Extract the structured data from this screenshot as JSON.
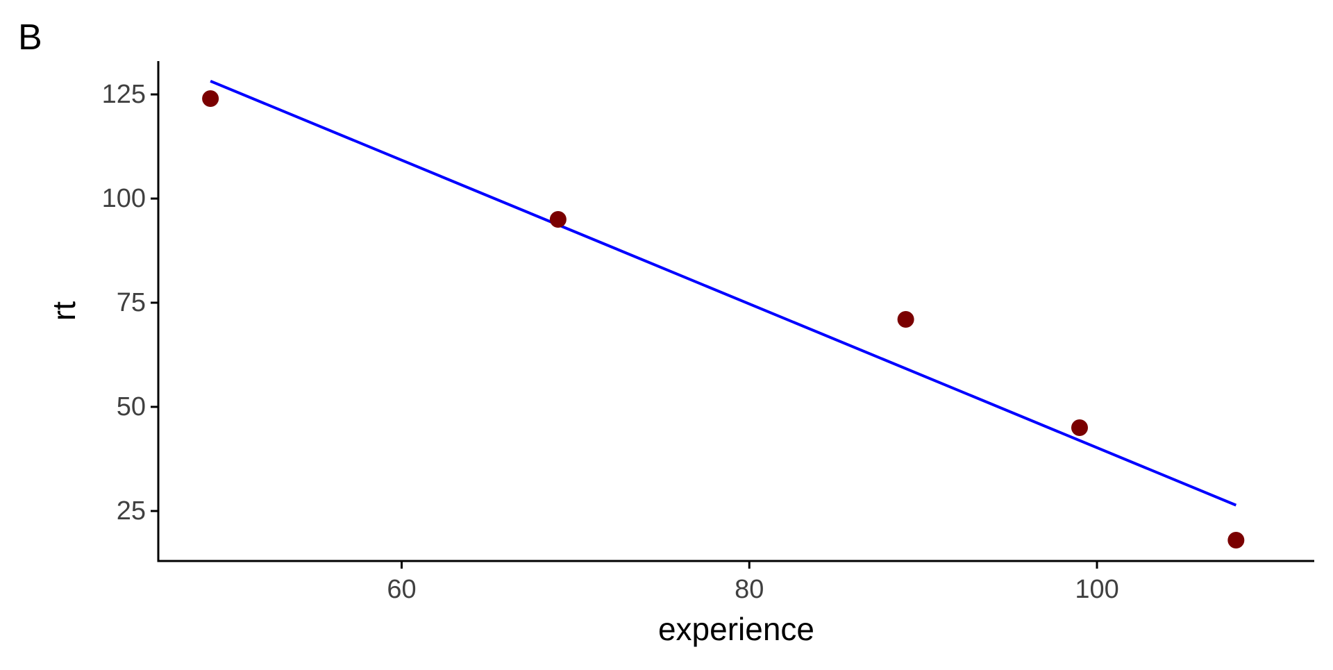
{
  "panel_label": "B",
  "chart_data": {
    "type": "scatter",
    "x_label": "experience",
    "y_label": "rt",
    "x_ticks": [
      60,
      80,
      100
    ],
    "y_ticks": [
      25,
      50,
      75,
      100,
      125
    ],
    "xlim": [
      46,
      112.5
    ],
    "ylim": [
      13,
      133
    ],
    "points": [
      {
        "x": 49,
        "y": 124
      },
      {
        "x": 69,
        "y": 95
      },
      {
        "x": 89,
        "y": 71
      },
      {
        "x": 99,
        "y": 45
      },
      {
        "x": 108,
        "y": 18
      }
    ],
    "trend_line": {
      "x_start": 49,
      "y_start": 128.2,
      "x_end": 108,
      "y_end": 26.4
    },
    "grid": false,
    "legend": "none",
    "colors": {
      "point": "#7a0000",
      "line": "#0000ff",
      "axis": "#000000",
      "tick_label": "#404040",
      "axis_title": "#000000"
    }
  }
}
